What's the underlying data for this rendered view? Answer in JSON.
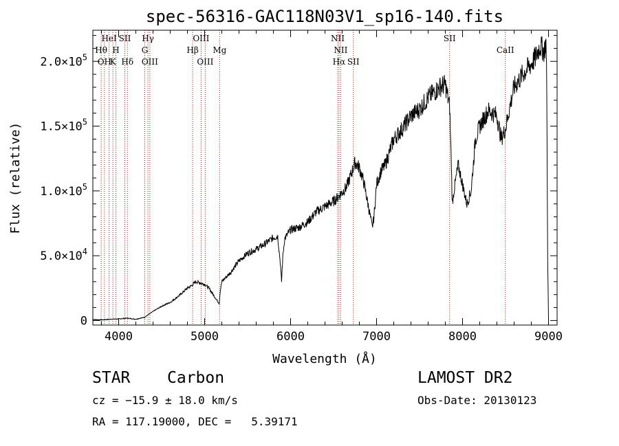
{
  "chart_data": {
    "type": "line",
    "title": "spec-56316-GAC118N03V1_sp16-140.fits",
    "xlabel": "Wavelength (Å)",
    "ylabel": "Flux (relative)",
    "xlim": [
      3700,
      9100
    ],
    "ylim": [
      -3500,
      224000
    ],
    "x_ticks": [
      4000,
      5000,
      6000,
      7000,
      8000,
      9000
    ],
    "x_tick_labels": [
      "4000",
      "5000",
      "6000",
      "7000",
      "8000",
      "9000"
    ],
    "y_ticks": [
      0,
      50000,
      100000,
      150000,
      200000
    ],
    "y_tick_labels": [
      {
        "mant": "0",
        "exp": ""
      },
      {
        "mant": "5.0×10",
        "exp": "4"
      },
      {
        "mant": "1.0×10",
        "exp": "5"
      },
      {
        "mant": "1.5×10",
        "exp": "5"
      },
      {
        "mant": "2.0×10",
        "exp": "5"
      }
    ],
    "series": [
      {
        "x": [
          3700,
          3800,
          3900,
          4000,
          4100,
          4200,
          4300,
          4400,
          4500,
          4600,
          4700,
          4800,
          4850,
          4900,
          4950,
          5000,
          5050,
          5100,
          5150,
          5170,
          5180,
          5200,
          5300,
          5400,
          5500,
          5600,
          5700,
          5800,
          5850,
          5880,
          5895,
          5910,
          5930,
          6000,
          6100,
          6200,
          6300,
          6400,
          6500,
          6550,
          6570,
          6600,
          6650,
          6700,
          6750,
          6800,
          6850,
          6900,
          6950,
          6970,
          7000,
          7050,
          7100,
          7150,
          7200,
          7300,
          7400,
          7500,
          7600,
          7700,
          7750,
          7800,
          7850,
          7870,
          7880,
          7900,
          7950,
          8000,
          8050,
          8100,
          8150,
          8200,
          8300,
          8400,
          8450,
          8500,
          8550,
          8600,
          8700,
          8800,
          8850,
          8900,
          8950,
          8970,
          8980,
          8990,
          9000
        ],
        "y": [
          800,
          500,
          1000,
          1200,
          1800,
          1000,
          2500,
          7000,
          11000,
          14000,
          19000,
          25000,
          27000,
          30000,
          29000,
          28000,
          25000,
          20000,
          15000,
          13000,
          22000,
          30000,
          37000,
          46000,
          52000,
          55000,
          59000,
          64000,
          65000,
          45000,
          30000,
          50000,
          63000,
          70000,
          72000,
          76000,
          84000,
          88000,
          92000,
          95000,
          97000,
          99000,
          103000,
          112000,
          122000,
          118000,
          107000,
          90000,
          72000,
          80000,
          105000,
          115000,
          120000,
          130000,
          140000,
          148000,
          158000,
          163000,
          172000,
          178000,
          181000,
          182000,
          165000,
          120000,
          90000,
          100000,
          120000,
          105000,
          90000,
          100000,
          140000,
          150000,
          162000,
          158000,
          140000,
          148000,
          165000,
          180000,
          190000,
          198000,
          203000,
          212000,
          208000,
          215000,
          180000,
          50000,
          1000
        ]
      }
    ],
    "lines": [
      {
        "x": 3797,
        "label": "Hθ",
        "row": 1
      },
      {
        "x": 3835,
        "label": "OH",
        "row": 2
      },
      {
        "x": 3889,
        "label": "HeI",
        "row": 0
      },
      {
        "x": 3933,
        "label": "K",
        "row": 2
      },
      {
        "x": 3968,
        "label": "H",
        "row": 1
      },
      {
        "x": 4072,
        "label": "SII",
        "row": 0
      },
      {
        "x": 4102,
        "label": "Hδ",
        "row": 2
      },
      {
        "x": 4304,
        "label": "G",
        "row": 1
      },
      {
        "x": 4341,
        "label": "Hγ",
        "row": 0
      },
      {
        "x": 4363,
        "label": "OIII",
        "row": 2
      },
      {
        "x": 4861,
        "label": "Hβ",
        "row": 1
      },
      {
        "x": 4959,
        "label": "OIII",
        "row": 0
      },
      {
        "x": 5007,
        "label": "OIII",
        "row": 2
      },
      {
        "x": 5175,
        "label": "Mg",
        "row": 1
      },
      {
        "x": 6548,
        "label": "NII",
        "row": 0
      },
      {
        "x": 6563,
        "label": "Hα",
        "row": 2
      },
      {
        "x": 6583,
        "label": "NII",
        "row": 1
      },
      {
        "x": 6730,
        "label": "SII",
        "row": 2
      },
      {
        "x": 7850,
        "label": "SII",
        "row": 0
      },
      {
        "x": 8498,
        "label": "CaII",
        "row": 1
      }
    ],
    "grid": false,
    "legend": "none"
  },
  "info": {
    "class_label": "STAR",
    "subclass_label": "Carbon",
    "survey": "LAMOST DR2",
    "cz": "cz = −15.9 ± 18.0 km/s",
    "obs_date": "Obs-Date: 20130123",
    "coords": "RA = 117.19000, DEC =   5.39171"
  }
}
